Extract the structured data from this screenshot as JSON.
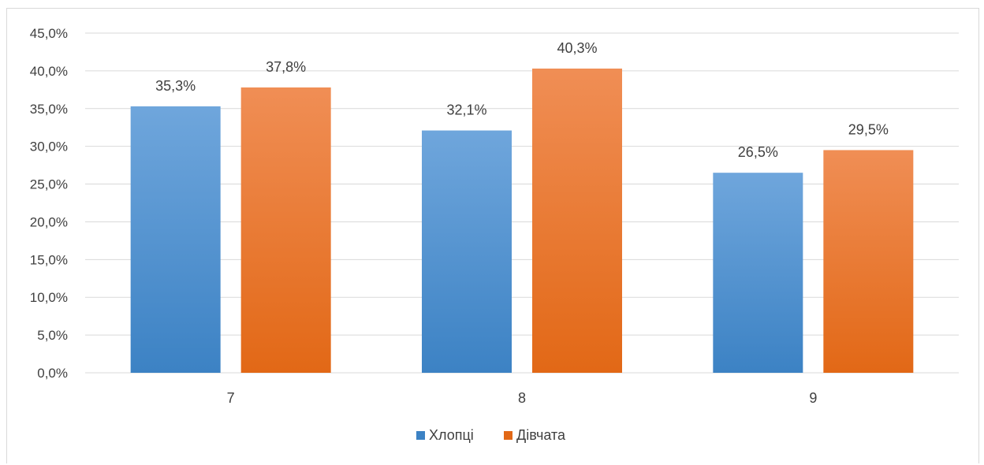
{
  "chart_data": {
    "type": "bar",
    "categories": [
      "7",
      "8",
      "9"
    ],
    "series": [
      {
        "name": "Хлопці",
        "values": [
          35.3,
          32.1,
          26.5
        ],
        "labels": [
          "35,3%",
          "32,1%",
          "26,5%"
        ]
      },
      {
        "name": "Дівчата",
        "values": [
          37.8,
          40.3,
          29.5
        ],
        "labels": [
          "37,8%",
          "40,3%",
          "29,5%"
        ]
      }
    ],
    "y_ticks": [
      "0,0%",
      "5,0%",
      "10,0%",
      "15,0%",
      "20,0%",
      "25,0%",
      "30,0%",
      "35,0%",
      "40,0%",
      "45,0%"
    ],
    "ylim": [
      0,
      45
    ],
    "grid": true,
    "legend_position": "bottom",
    "colors": {
      "series_1_top": "#6fa6dc",
      "series_1_bottom": "#3c82c4",
      "series_2_top": "#f08e55",
      "series_2_bottom": "#e26816",
      "gridline": "#d9d9d9",
      "text": "#404040"
    }
  }
}
